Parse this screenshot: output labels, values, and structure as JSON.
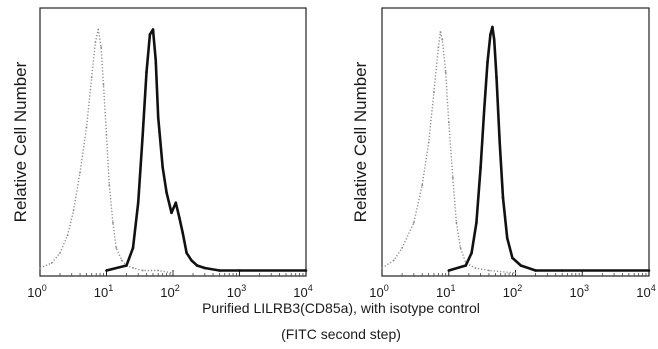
{
  "chart_data": [
    {
      "type": "line",
      "panel": "left",
      "ylabel": "Relative Cell Number",
      "xscale": "log",
      "xlim": [
        1,
        10000
      ],
      "x_ticks": [
        {
          "base": "10",
          "exp": "0"
        },
        {
          "base": "10",
          "exp": "1"
        },
        {
          "base": "10",
          "exp": "2"
        },
        {
          "base": "10",
          "exp": "3"
        },
        {
          "base": "10",
          "exp": "4"
        }
      ],
      "grid": false,
      "series": [
        {
          "role": "isotype control",
          "style": "dotted-gray",
          "color": "#8a8a8a",
          "x": [
            1,
            1.5,
            2,
            2.6,
            3.2,
            4,
            5,
            6,
            6.8,
            7.5,
            8.3,
            9,
            10,
            11,
            12.5,
            14,
            17,
            20,
            25,
            35,
            60,
            100
          ],
          "y": [
            0.02,
            0.04,
            0.08,
            0.15,
            0.25,
            0.4,
            0.58,
            0.78,
            0.92,
            0.97,
            0.9,
            0.75,
            0.55,
            0.35,
            0.2,
            0.1,
            0.05,
            0.03,
            0.02,
            0.01,
            0.01,
            0.0
          ]
        },
        {
          "role": "LILRB3 (CD85a)",
          "style": "solid-black",
          "color": "#111111",
          "x": [
            10,
            20,
            25,
            30,
            35,
            40,
            45,
            50,
            55,
            60,
            70,
            80,
            95,
            110,
            125,
            140,
            160,
            190,
            230,
            300,
            500,
            1000,
            10000
          ],
          "y": [
            0.01,
            0.03,
            0.1,
            0.28,
            0.55,
            0.8,
            0.95,
            0.97,
            0.85,
            0.62,
            0.42,
            0.32,
            0.24,
            0.28,
            0.22,
            0.16,
            0.08,
            0.05,
            0.03,
            0.02,
            0.01,
            0.01,
            0.01
          ]
        }
      ]
    },
    {
      "type": "line",
      "panel": "right",
      "ylabel": "Relative Cell Number",
      "xscale": "log",
      "xlim": [
        1,
        10000
      ],
      "x_ticks": [
        {
          "base": "10",
          "exp": "0"
        },
        {
          "base": "10",
          "exp": "1"
        },
        {
          "base": "10",
          "exp": "2"
        },
        {
          "base": "10",
          "exp": "3"
        },
        {
          "base": "10",
          "exp": "4"
        }
      ],
      "grid": false,
      "series": [
        {
          "role": "isotype control",
          "style": "dotted-gray",
          "color": "#8a8a8a",
          "x": [
            1,
            1.5,
            2,
            3,
            4,
            5,
            6,
            7,
            7.5,
            8,
            9,
            10,
            11.5,
            13,
            15,
            18,
            25,
            40,
            100
          ],
          "y": [
            0.02,
            0.05,
            0.1,
            0.2,
            0.35,
            0.52,
            0.72,
            0.9,
            0.96,
            0.93,
            0.8,
            0.6,
            0.38,
            0.2,
            0.1,
            0.04,
            0.02,
            0.01,
            0.0
          ]
        },
        {
          "role": "LILRB3 (CD85a)",
          "style": "solid-black",
          "color": "#111111",
          "x": [
            10,
            18,
            22,
            26,
            30,
            34,
            38,
            42,
            45,
            48,
            52,
            58,
            65,
            75,
            90,
            120,
            200,
            500,
            10000
          ],
          "y": [
            0.01,
            0.03,
            0.08,
            0.2,
            0.42,
            0.65,
            0.84,
            0.95,
            0.98,
            0.93,
            0.78,
            0.52,
            0.3,
            0.14,
            0.06,
            0.03,
            0.01,
            0.01,
            0.01
          ]
        }
      ]
    }
  ],
  "caption": {
    "line1": "Purified LILRB3(CD85a), with isotype control",
    "line2": "(FITC second step)"
  }
}
